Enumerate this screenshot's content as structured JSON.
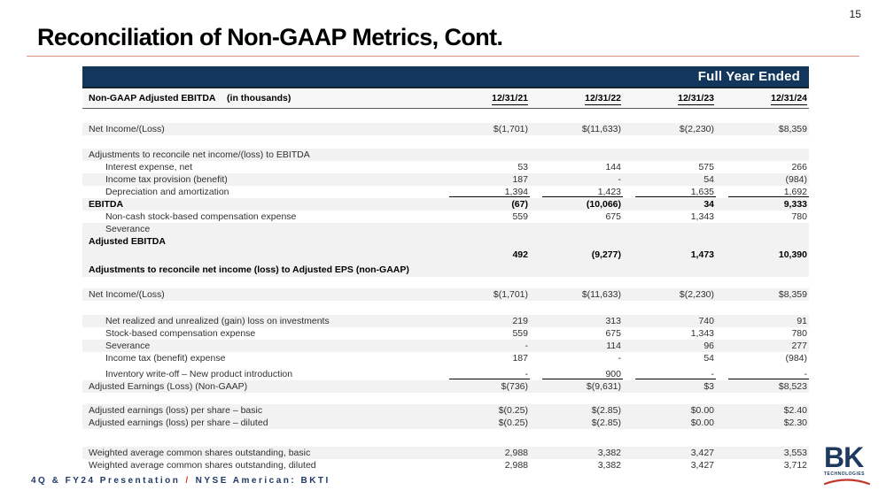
{
  "page": {
    "number": "15",
    "title": "Reconciliation of Non-GAAP Metrics, Cont.",
    "footer": {
      "left": "4Q & FY24 Presentation",
      "separator": "/",
      "right": "NYSE American: BKTI"
    },
    "logo": {
      "text": "BK",
      "subtext": "TECHNOLOGIES"
    }
  },
  "colors": {
    "navy": "#12365c",
    "accent_red": "#d63a2f",
    "title_rule_salmon": "#e0907e",
    "row_stripe": "#f2f2f2"
  },
  "table": {
    "band_header": "Full Year Ended",
    "header": {
      "label_main": "Non-GAAP Adjusted EBITDA",
      "label_note": "(in thousands)",
      "columns": [
        "12/31/21",
        "12/31/22",
        "12/31/23",
        "12/31/24"
      ]
    },
    "rows": [
      {
        "type": "spacer",
        "h": 16
      },
      {
        "label": "Net Income/(Loss)",
        "values": [
          "$(1,701)",
          "$(11,633)",
          "$(2,230)",
          "$8,359"
        ],
        "shade": true
      },
      {
        "type": "spacer",
        "h": 15
      },
      {
        "label": "Adjustments to reconcile net income/(loss) to EBITDA",
        "values": [
          "",
          "",
          "",
          ""
        ],
        "shade": true
      },
      {
        "label": "Interest expense, net",
        "values": [
          "53",
          "144",
          "575",
          "266"
        ],
        "ind": true
      },
      {
        "label": "Income tax provision (benefit)",
        "values": [
          "187",
          "-",
          "54",
          "(984)"
        ],
        "ind": true,
        "shade": true
      },
      {
        "label": "Depreciation and amortization",
        "values": [
          "1,394",
          "1,423",
          "1,635",
          "1,692"
        ],
        "ind": true,
        "ul": true
      },
      {
        "label": "EBITDA",
        "values": [
          "(67)",
          "(10,066)",
          "34",
          "9,333"
        ],
        "bold": true,
        "shade": true
      },
      {
        "label": "Non-cash stock-based compensation expense",
        "values": [
          "559",
          "675",
          "1,343",
          "780"
        ],
        "ind": true
      },
      {
        "label": "Severance",
        "values": [
          "",
          "",
          "",
          ""
        ],
        "ind": true,
        "shade": true
      },
      {
        "label": "Adjusted EBITDA",
        "values": [
          "492",
          "(9,277)",
          "1,473",
          "10,390"
        ],
        "bold": true,
        "tall": true,
        "shade": true,
        "h": 28
      },
      {
        "label": "Adjustments to reconcile net income (loss) to Adjusted EPS (non-GAAP)",
        "values": [
          "",
          "",
          "",
          ""
        ],
        "bold": true,
        "shade": true,
        "h": 16
      },
      {
        "type": "spacer",
        "h": 13
      },
      {
        "label": "Net Income/(Loss)",
        "values": [
          "$(1,701)",
          "$(11,633)",
          "$(2,230)",
          "$8,359"
        ],
        "shade": true
      },
      {
        "type": "spacer",
        "h": 16
      },
      {
        "label": "Net realized and unrealized (gain) loss on investments",
        "values": [
          "219",
          "313",
          "740",
          "91"
        ],
        "ind": true,
        "shade": true
      },
      {
        "label": "Stock-based compensation expense",
        "values": [
          "559",
          "675",
          "1,343",
          "780"
        ],
        "ind": true
      },
      {
        "label": "Severance",
        "values": [
          "-",
          "114",
          "96",
          "277"
        ],
        "ind": true,
        "shade": true
      },
      {
        "label": "Income tax (benefit) expense",
        "values": [
          "187",
          "-",
          "54",
          "(984)"
        ],
        "ind": true
      },
      {
        "type": "spacer",
        "h": 4
      },
      {
        "label": "Inventory write-off – New product introduction",
        "values": [
          "-",
          "900",
          "-",
          "-"
        ],
        "ind": true,
        "ul": true
      },
      {
        "label": "Adjusted Earnings (Loss) (Non-GAAP)",
        "values": [
          "$(736)",
          "$(9,631)",
          "$3",
          "$8,523"
        ],
        "shade": true
      },
      {
        "type": "spacer",
        "h": 13
      },
      {
        "label": "Adjusted earnings (loss) per share – basic",
        "values": [
          "$(0.25)",
          "$(2.85)",
          "$0.00",
          "$2.40"
        ],
        "shade": true
      },
      {
        "label": "Adjusted earnings (loss) per share – diluted",
        "values": [
          "$(0.25)",
          "$(2.85)",
          "$0.00",
          "$2.30"
        ],
        "shade": true
      },
      {
        "type": "spacer",
        "h": 20
      },
      {
        "label": "Weighted average common shares outstanding, basic",
        "values": [
          "2,988",
          "3,382",
          "3,427",
          "3,553"
        ],
        "shade": true
      },
      {
        "label": "Weighted average common shares outstanding, diluted",
        "values": [
          "2,988",
          "3,382",
          "3,427",
          "3,712"
        ]
      }
    ]
  }
}
